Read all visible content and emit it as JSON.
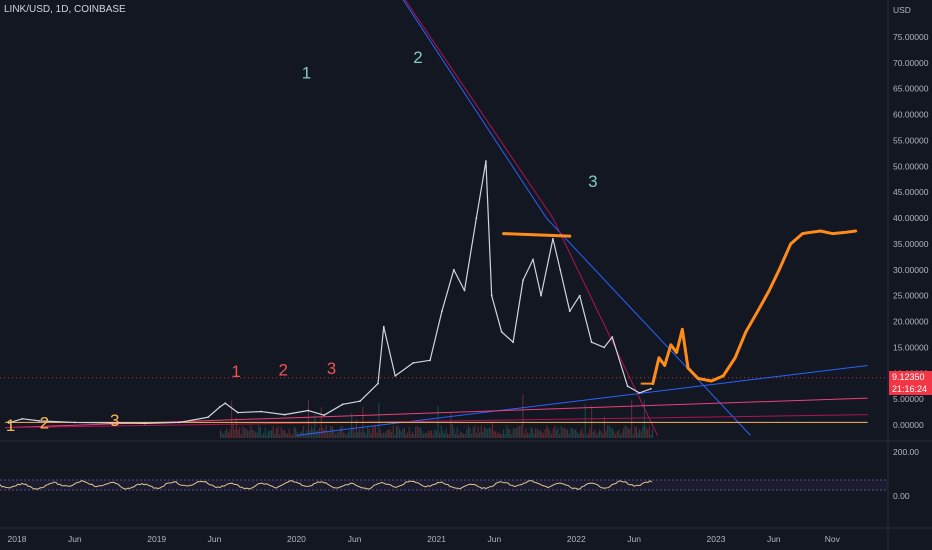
{
  "header": {
    "title": "LINK/USD, 1D, COINBASE"
  },
  "chart_data": {
    "type": "line",
    "title": "LINK/USD, 1D, COINBASE",
    "currency_label": "USD",
    "y_ticks": [
      "75.00000",
      "70.00000",
      "65.00000",
      "60.00000",
      "55.00000",
      "50.00000",
      "45.00000",
      "40.00000",
      "35.00000",
      "30.00000",
      "25.00000",
      "20.00000",
      "15.00000",
      "10.00000",
      "5.00000",
      "0.00000"
    ],
    "y_tick_values": [
      75,
      70,
      65,
      60,
      55,
      50,
      45,
      40,
      35,
      30,
      25,
      20,
      15,
      10,
      5,
      0
    ],
    "ylim": [
      -2,
      79
    ],
    "x_ticks": [
      "2018",
      "Jun",
      "2019",
      "Jun",
      "2020",
      "Jun",
      "2021",
      "Jun",
      "2022",
      "Jun",
      "2023",
      "Jun",
      "Nov"
    ],
    "x_tick_dates": [
      "2018-01-01",
      "2018-06-01",
      "2019-01-01",
      "2019-06-01",
      "2020-01-01",
      "2020-06-01",
      "2021-01-01",
      "2021-06-01",
      "2022-01-01",
      "2022-06-01",
      "2023-01-01",
      "2023-06-01",
      "2023-11-01"
    ],
    "price_series": {
      "name": "",
      "color": "#d1d4dc",
      "x": [
        "2017-12-10",
        "2018-01-15",
        "2018-03-01",
        "2018-06-01",
        "2018-09-01",
        "2018-12-01",
        "2019-03-01",
        "2019-05-15",
        "2019-06-15",
        "2019-06-29",
        "2019-08-01",
        "2019-10-01",
        "2019-12-01",
        "2020-02-01",
        "2020-03-13",
        "2020-05-01",
        "2020-06-15",
        "2020-08-01",
        "2020-08-16",
        "2020-09-15",
        "2020-11-01",
        "2020-12-15",
        "2021-01-15",
        "2021-02-15",
        "2021-03-15",
        "2021-04-15",
        "2021-05-10",
        "2021-05-25",
        "2021-06-20",
        "2021-07-20",
        "2021-08-15",
        "2021-09-10",
        "2021-10-01",
        "2021-11-01",
        "2021-11-20",
        "2021-12-15",
        "2022-01-10",
        "2022-02-10",
        "2022-03-15",
        "2022-04-05",
        "2022-05-15",
        "2022-06-15",
        "2022-07-15"
      ],
      "y": [
        0.4,
        1.2,
        0.8,
        0.5,
        0.4,
        0.3,
        0.5,
        1.5,
        3.5,
        4.2,
        2.4,
        2.6,
        2.0,
        2.8,
        1.9,
        4.0,
        4.6,
        8.0,
        19.0,
        9.5,
        12.0,
        12.5,
        22.0,
        30.0,
        26.0,
        40.0,
        51.0,
        25.0,
        18.0,
        16.0,
        28.0,
        32.0,
        25.0,
        36.0,
        30.0,
        22.0,
        25.0,
        16.0,
        15.0,
        17.0,
        7.5,
        6.2,
        7.0
      ]
    },
    "projection": {
      "name": "",
      "color": "#ff8c1a",
      "x": [
        "2022-07-20",
        "2022-08-05",
        "2022-08-20",
        "2022-09-05",
        "2022-09-20",
        "2022-10-05",
        "2022-10-20",
        "2022-11-15",
        "2022-12-20",
        "2023-01-20",
        "2023-02-20",
        "2023-03-20",
        "2023-04-20",
        "2023-05-20",
        "2023-06-15",
        "2023-07-15",
        "2023-08-15",
        "2023-09-01",
        "2023-10-01",
        "2023-11-01",
        "2023-12-01",
        "2024-01-01"
      ],
      "y": [
        8.0,
        13.0,
        11.5,
        15.5,
        14.0,
        18.5,
        11.0,
        9.0,
        8.5,
        9.5,
        13.0,
        18.0,
        22.0,
        26.0,
        30.0,
        35.0,
        37.0,
        37.2,
        37.5,
        37.0,
        37.2,
        37.5
      ]
    },
    "resistance_segment": {
      "x": [
        "2021-06-25",
        "2021-12-15"
      ],
      "y": [
        37.0,
        36.5
      ],
      "color": "#ff8c1a"
    },
    "pink_line_dot_label": {
      "x": "2022-07-25",
      "y": 8.0,
      "color": "#ff8c1a"
    },
    "trendlines": [
      {
        "color": "#2962ff",
        "x": [
          "2020-05-01",
          "2021-10-15",
          "2023-04-01"
        ],
        "y": [
          100,
          40,
          -2
        ]
      },
      {
        "color": "#ad1457",
        "x": [
          "2020-05-01",
          "2021-11-01",
          "2022-08-01"
        ],
        "y": [
          100,
          40,
          -2
        ]
      },
      {
        "color": "#2962ff",
        "x": [
          "2020-01-01",
          "2024-02-01"
        ],
        "y": [
          -2,
          11.5
        ]
      },
      {
        "color": "#ec407a",
        "x": [
          "2017-12-01",
          "2024-02-01"
        ],
        "y": [
          -0.5,
          5.2
        ]
      },
      {
        "color": "#ad1457",
        "x": [
          "2017-12-01",
          "2024-02-01"
        ],
        "y": [
          -0.5,
          2.0
        ]
      },
      {
        "color": "#ffb74d",
        "x": [
          "2017-12-01",
          "2024-02-01"
        ],
        "y": [
          0.5,
          0.5
        ]
      }
    ],
    "dotted_price_line": {
      "y": 9.1235,
      "color": "#f23645"
    },
    "wave_labels": [
      {
        "text": "1",
        "x": "2020-01-15",
        "y": 67,
        "color": "#80cbc4"
      },
      {
        "text": "2",
        "x": "2020-11-01",
        "y": 70,
        "color": "#80cbc4"
      },
      {
        "text": "3",
        "x": "2022-02-01",
        "y": 46,
        "color": "#80cbc4"
      },
      {
        "text": "1",
        "x": "2019-07-15",
        "y": 9.3,
        "color": "#ef5350"
      },
      {
        "text": "2",
        "x": "2019-11-15",
        "y": 9.6,
        "color": "#ef5350"
      },
      {
        "text": "3",
        "x": "2020-03-20",
        "y": 9.9,
        "color": "#ef5350"
      },
      {
        "text": "1",
        "x": "2017-12-03",
        "y": -1.2,
        "color": "#ffb74d"
      },
      {
        "text": "2",
        "x": "2018-03-01",
        "y": -0.7,
        "color": "#ffb74d"
      },
      {
        "text": "3",
        "x": "2018-09-01",
        "y": -0.2,
        "color": "#ffb74d"
      }
    ],
    "price_label": {
      "value": "9.12350",
      "countdown": "21:16:24",
      "color": "#f23645"
    },
    "oscillator": {
      "ticks": [
        "200.00",
        "0.00"
      ],
      "line_color": "#e0c58c",
      "band_color": "#7e57c2"
    },
    "grid": false
  }
}
